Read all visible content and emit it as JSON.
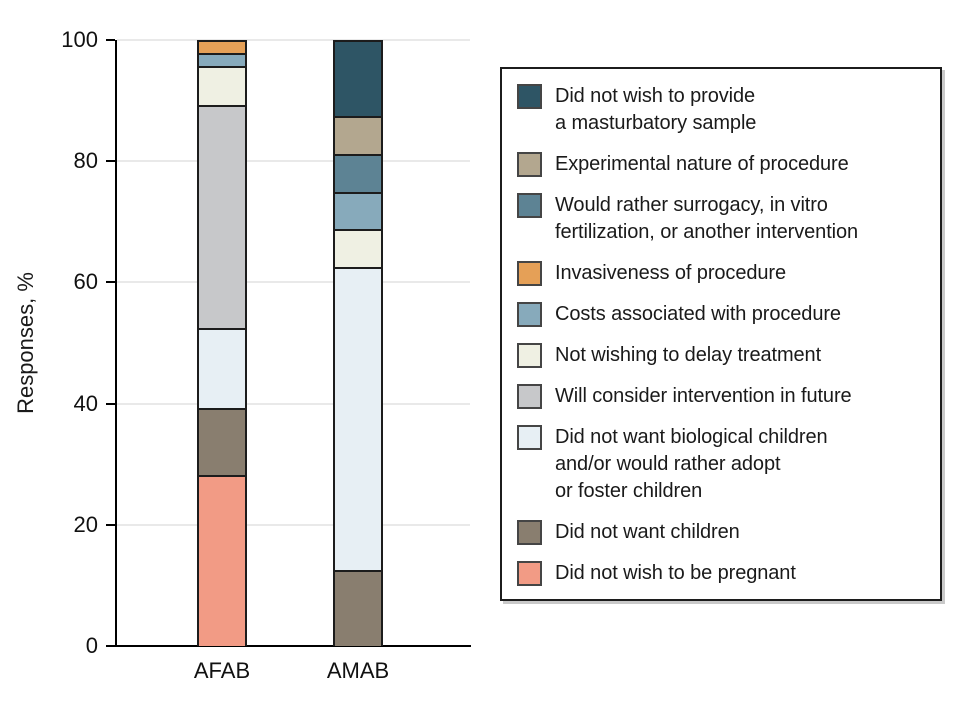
{
  "chart_data": {
    "type": "bar",
    "stacked": true,
    "title": "",
    "ylabel": "Responses, %",
    "xlabel": "",
    "ylim": [
      0,
      100
    ],
    "yticks": [
      0,
      20,
      40,
      60,
      80,
      100
    ],
    "grid": "horizontal light-gray lines at each y tick",
    "legend_position": "right, boxed with black border",
    "categories": [
      "AFAB",
      "AMAB"
    ],
    "series": [
      {
        "id": "no-masturbatory-sample",
        "label": "Did not wish to provide\na masturbatory sample",
        "color": "#2E5565",
        "values": [
          0,
          12.5
        ]
      },
      {
        "id": "experimental-nature",
        "label": "Experimental nature of procedure",
        "color": "#B3A78F",
        "values": [
          0,
          6.25
        ]
      },
      {
        "id": "prefer-surrogacy-ivf",
        "label": "Would rather surrogacy, in vitro\nfertilization, or another intervention",
        "color": "#5D8394",
        "values": [
          0,
          6.25
        ]
      },
      {
        "id": "invasiveness",
        "label": "Invasiveness of procedure",
        "color": "#E5A057",
        "values": [
          2.2,
          0
        ]
      },
      {
        "id": "costs",
        "label": "Costs associated with procedure",
        "color": "#87AABB",
        "values": [
          2.1,
          6.25
        ]
      },
      {
        "id": "no-delay-treatment",
        "label": "Not wishing to delay treatment",
        "color": "#EFF0E3",
        "values": [
          6.5,
          6.25
        ]
      },
      {
        "id": "consider-future",
        "label": "Will consider intervention in future",
        "color": "#C7C8CA",
        "values": [
          36.8,
          0
        ]
      },
      {
        "id": "no-biological-children",
        "label": "Did not want biological children\nand/or would rather adopt\nor foster children",
        "color": "#E7EFF4",
        "values": [
          13.1,
          50
        ]
      },
      {
        "id": "no-children",
        "label": "Did not want children",
        "color": "#897E6F",
        "values": [
          11.1,
          12.5
        ]
      },
      {
        "id": "no-pregnancy",
        "label": "Did not wish to be pregnant",
        "color": "#F29B85",
        "values": [
          28.2,
          0
        ]
      }
    ],
    "colors": {
      "axis": "#000000",
      "segment_border": "#1c1c1c",
      "gridline": "#e9e9e9"
    }
  }
}
